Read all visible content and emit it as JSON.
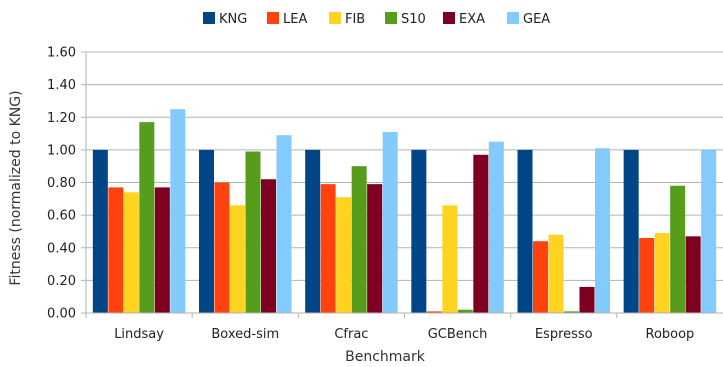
{
  "chart_data": {
    "type": "bar",
    "title": "",
    "xlabel": "Benchmark",
    "ylabel": "Fitness (normalized to KNG)",
    "ylim": [
      0,
      1.6
    ],
    "yticks": [
      "0.00",
      "0.20",
      "0.40",
      "0.60",
      "0.80",
      "1.00",
      "1.20",
      "1.40",
      "1.60"
    ],
    "grid": true,
    "legend_position": "top",
    "categories": [
      "Lindsay",
      "Boxed-sim",
      "Cfrac",
      "GCBench",
      "Espresso",
      "Roboop"
    ],
    "series": [
      {
        "name": "KNG",
        "color": "#004586",
        "values": [
          1.0,
          1.0,
          1.0,
          1.0,
          1.0,
          1.0
        ]
      },
      {
        "name": "LEA",
        "color": "#ff420e",
        "values": [
          0.77,
          0.8,
          0.79,
          0.01,
          0.44,
          0.46
        ]
      },
      {
        "name": "FIB",
        "color": "#ffd320",
        "values": [
          0.74,
          0.66,
          0.71,
          0.66,
          0.48,
          0.49
        ]
      },
      {
        "name": "S10",
        "color": "#579d1c",
        "values": [
          1.17,
          0.99,
          0.9,
          0.02,
          0.01,
          0.78
        ]
      },
      {
        "name": "EXA",
        "color": "#7e0021",
        "values": [
          0.77,
          0.82,
          0.79,
          0.97,
          0.16,
          0.47
        ]
      },
      {
        "name": "GEA",
        "color": "#83caff",
        "values": [
          1.25,
          1.09,
          1.11,
          1.05,
          1.01,
          1.0
        ]
      }
    ]
  }
}
